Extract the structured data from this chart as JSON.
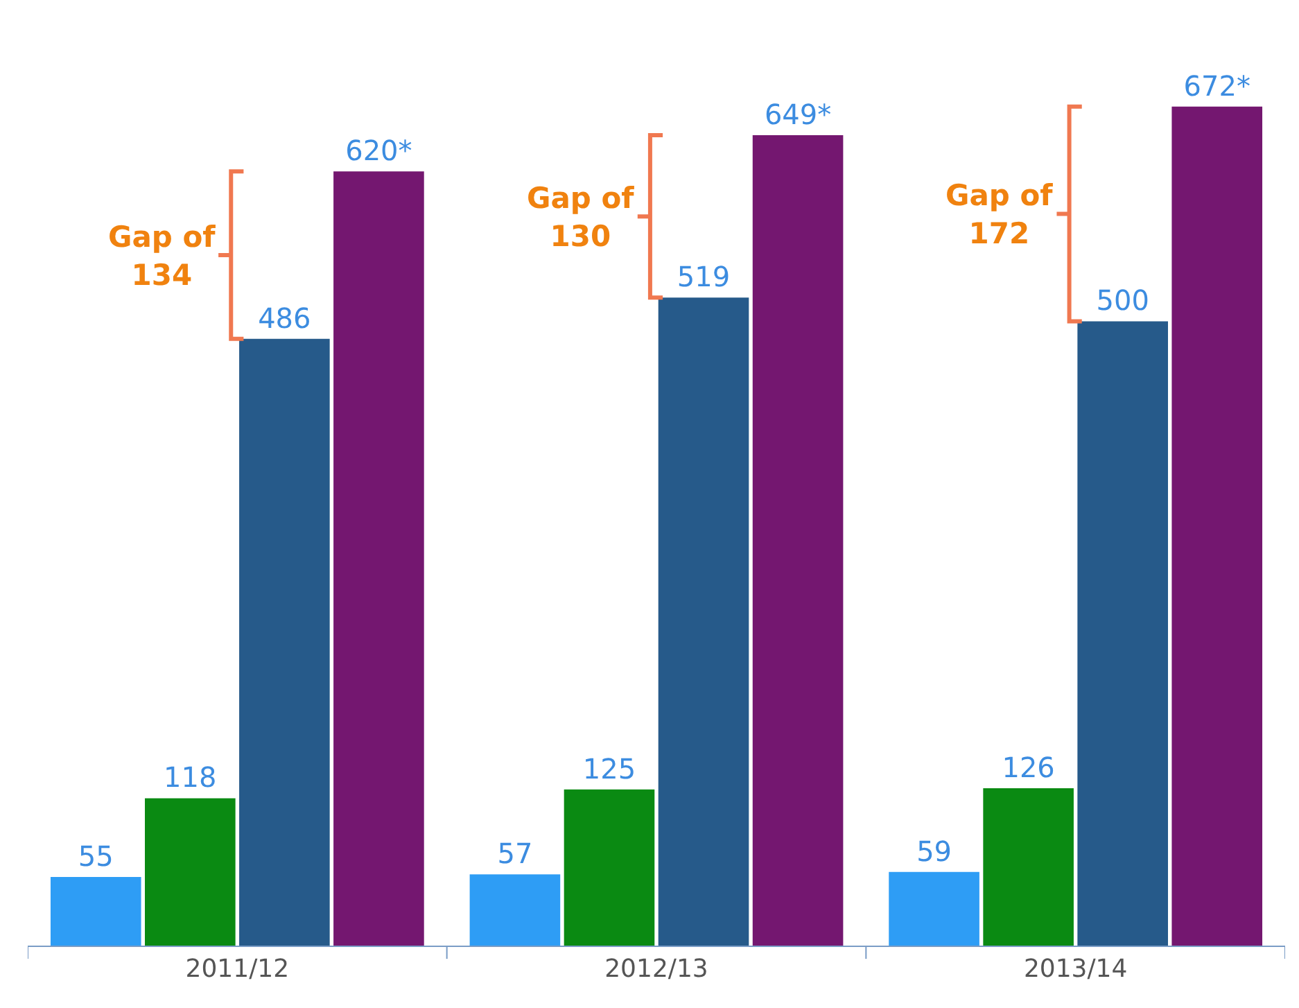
{
  "chart_data": {
    "type": "bar",
    "categories": [
      "2011/12",
      "2012/13",
      "2013/14"
    ],
    "series": [
      {
        "color": "#2e9df5",
        "values": [
          55,
          57,
          59
        ],
        "value_labels": [
          "55",
          "57",
          "59"
        ]
      },
      {
        "color": "#0a8a12",
        "values": [
          118,
          125,
          126
        ],
        "value_labels": [
          "118",
          "125",
          "126"
        ]
      },
      {
        "color": "#265a8a",
        "values": [
          486,
          519,
          500
        ],
        "value_labels": [
          "486",
          "519",
          "500"
        ]
      },
      {
        "color": "#741770",
        "values": [
          620,
          649,
          672
        ],
        "value_labels": [
          "620*",
          "649*",
          "672*"
        ]
      }
    ],
    "annotations": [
      "Gap of\n134",
      "Gap of\n130",
      "Gap of\n172"
    ]
  }
}
